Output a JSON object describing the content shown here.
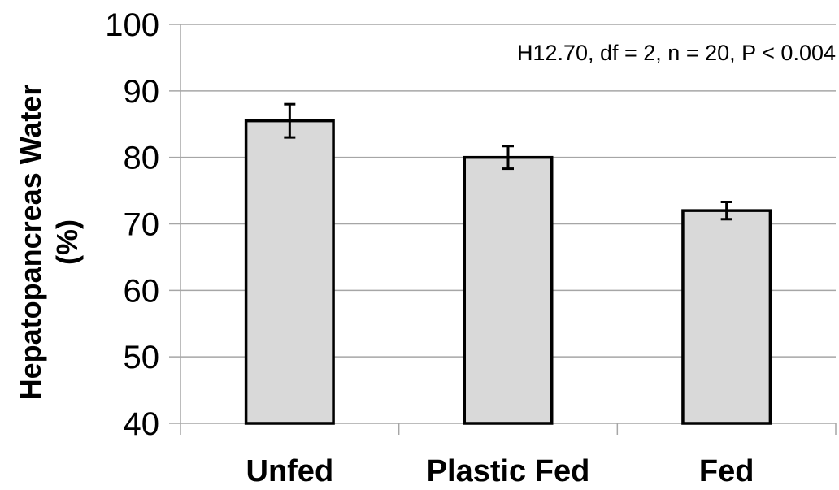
{
  "chart_data": {
    "type": "bar",
    "categories": [
      "Unfed",
      "Plastic Fed",
      "Fed"
    ],
    "values": [
      85.5,
      80,
      72
    ],
    "error": [
      2.5,
      1.7,
      1.3
    ],
    "ylabel_line1": "Hepatopancreas Water",
    "ylabel_line2": "(%)",
    "ylim": [
      40,
      100
    ],
    "yticks": [
      40,
      50,
      60,
      70,
      80,
      90,
      100
    ],
    "ytick_labels": [
      "40",
      "50",
      "60",
      "70",
      "80",
      "90",
      "100"
    ],
    "grid": true,
    "annotation": "H12.70, df = 2, n = 20, P < 0.004",
    "colors": {
      "bar_fill": "#d9d9d9",
      "bar_edge": "#000000",
      "grid": "#a6a6a6"
    }
  }
}
